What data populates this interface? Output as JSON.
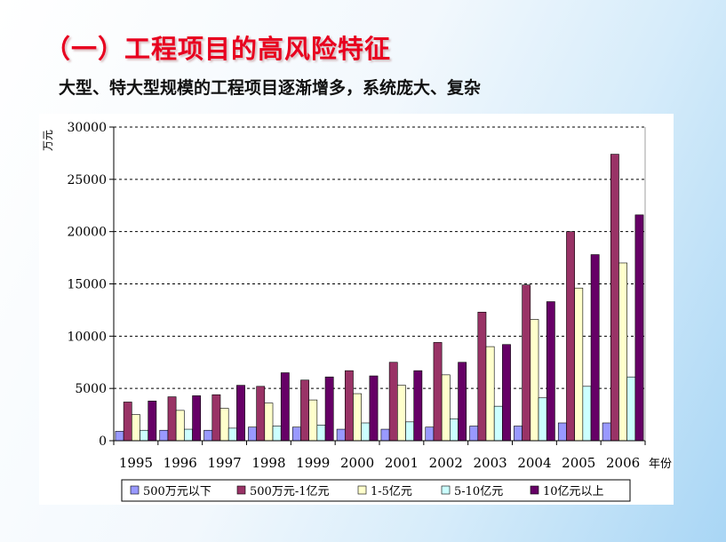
{
  "slide": {
    "title": "（一）工程项目的高风险特征",
    "subtitle": "大型、特大型规模的工程项目逐渐增多，系统庞大、复杂"
  },
  "chart_data": {
    "type": "bar",
    "title": "",
    "xlabel": "年份",
    "ylabel": "万元",
    "ylim": [
      0,
      30000
    ],
    "yticks": [
      0,
      5000,
      10000,
      15000,
      20000,
      25000,
      30000
    ],
    "grid": true,
    "legend_position": "bottom",
    "categories": [
      "1995",
      "1996",
      "1997",
      "1998",
      "1999",
      "2000",
      "2001",
      "2002",
      "2003",
      "2004",
      "2005",
      "2006"
    ],
    "series": [
      {
        "name": "500万元以下",
        "color": "#9999ff",
        "values": [
          900,
          1000,
          1000,
          1300,
          1300,
          1100,
          1100,
          1300,
          1400,
          1400,
          1700,
          1700
        ]
      },
      {
        "name": "500万元-1亿元",
        "color": "#993366",
        "values": [
          3700,
          4200,
          4400,
          5200,
          5800,
          6700,
          7500,
          9400,
          12300,
          14900,
          20000,
          27400
        ]
      },
      {
        "name": "1-5亿元",
        "color": "#ffffcc",
        "values": [
          2500,
          2900,
          3100,
          3600,
          3900,
          4500,
          5300,
          6300,
          9000,
          11600,
          14600,
          17000
        ]
      },
      {
        "name": "5-10亿元",
        "color": "#ccffff",
        "values": [
          1000,
          1100,
          1200,
          1400,
          1500,
          1700,
          1800,
          2100,
          3300,
          4100,
          5200,
          6100
        ]
      },
      {
        "name": "10亿元以上",
        "color": "#660066",
        "values": [
          3800,
          4300,
          5300,
          6500,
          6100,
          6200,
          6700,
          7500,
          9200,
          13300,
          17800,
          21600
        ]
      }
    ]
  }
}
